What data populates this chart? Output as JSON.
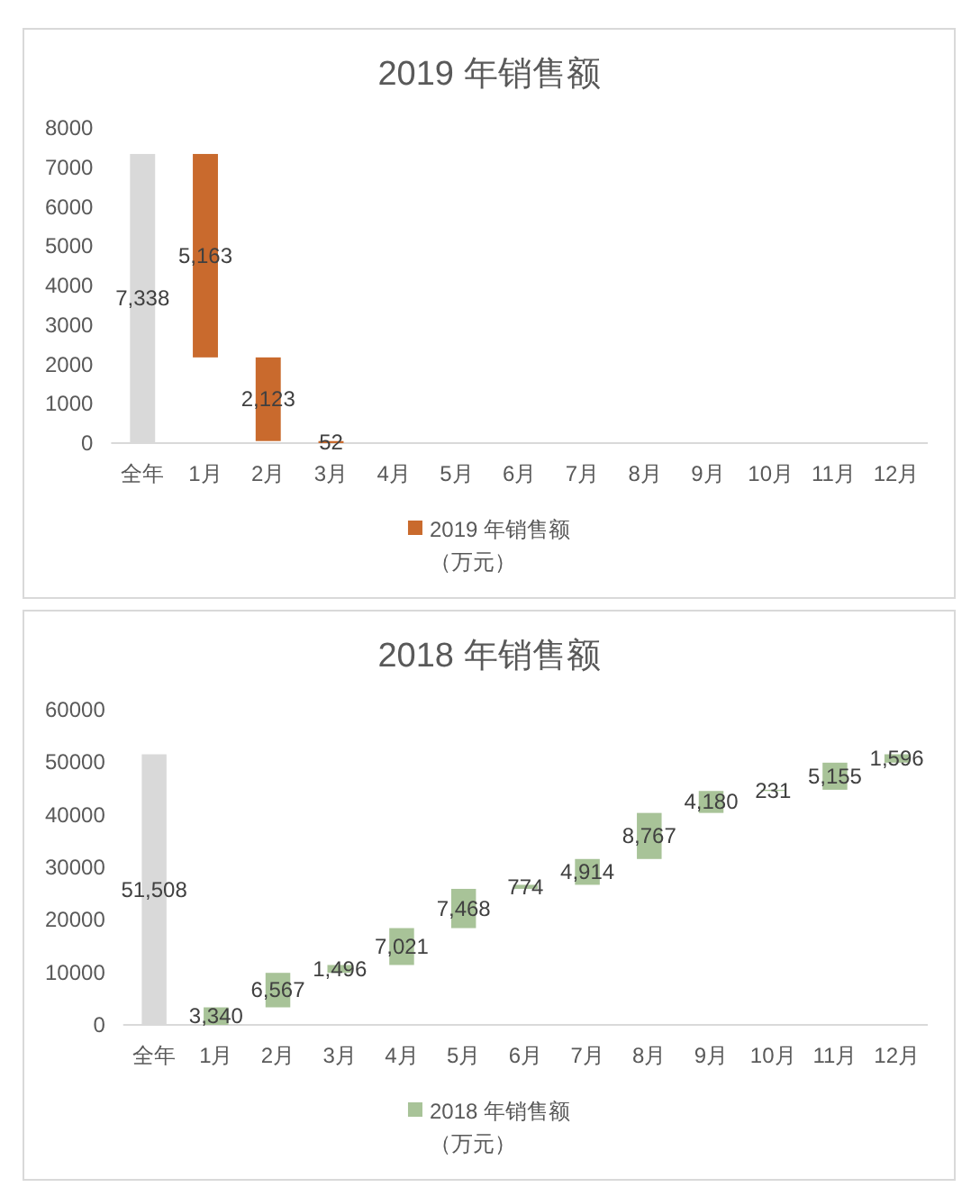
{
  "chart_data": [
    {
      "type": "bar",
      "title": "2019 年销售额",
      "categories": [
        "全年",
        "1月",
        "2月",
        "3月",
        "4月",
        "5月",
        "6月",
        "7月",
        "8月",
        "9月",
        "10月",
        "11月",
        "12月"
      ],
      "series": [
        {
          "color": "#d9d9d9",
          "values": [
            7338,
            null,
            null,
            null,
            null,
            null,
            null,
            null,
            null,
            null,
            null,
            null,
            null
          ],
          "value_labels": [
            "7,338",
            null,
            null,
            null,
            null,
            null,
            null,
            null,
            null,
            null,
            null,
            null,
            null
          ]
        },
        {
          "name": "2019 年销售额（万元）",
          "color": "#c96a2d",
          "values": [
            null,
            5163,
            2123,
            52,
            null,
            null,
            null,
            null,
            null,
            null,
            null,
            null,
            null
          ],
          "base": [
            null,
            2175,
            52,
            0,
            null,
            null,
            null,
            null,
            null,
            null,
            null,
            null,
            null
          ],
          "value_labels": [
            null,
            "5,163",
            "2,123",
            "52",
            null,
            null,
            null,
            null,
            null,
            null,
            null,
            null,
            null
          ]
        }
      ],
      "ylim": [
        0,
        8000
      ],
      "yticks": [
        0,
        1000,
        2000,
        3000,
        4000,
        5000,
        6000,
        7000,
        8000
      ],
      "legend": "bottom"
    },
    {
      "type": "bar",
      "title": "2018 年销售额",
      "categories": [
        "全年",
        "1月",
        "2月",
        "3月",
        "4月",
        "5月",
        "6月",
        "7月",
        "8月",
        "9月",
        "10月",
        "11月",
        "12月"
      ],
      "series": [
        {
          "color": "#d9d9d9",
          "values": [
            51508,
            null,
            null,
            null,
            null,
            null,
            null,
            null,
            null,
            null,
            null,
            null,
            null
          ],
          "value_labels": [
            "51,508",
            null,
            null,
            null,
            null,
            null,
            null,
            null,
            null,
            null,
            null,
            null,
            null
          ]
        },
        {
          "name": "2018 年销售额（万元）",
          "color": "#a8c398",
          "values": [
            null,
            3340,
            6567,
            1496,
            7021,
            7468,
            774,
            4914,
            8767,
            4180,
            231,
            5155,
            1596
          ],
          "base": [
            null,
            0,
            3340,
            9907,
            11403,
            18424,
            25892,
            26666,
            31580,
            40347,
            44527,
            44758,
            49913
          ],
          "value_labels": [
            null,
            "3,340",
            "6,567",
            "1,496",
            "7,021",
            "7,468",
            "774",
            "4,914",
            "8,767",
            "4,180",
            "231",
            "5,155",
            "1,596"
          ]
        }
      ],
      "ylim": [
        0,
        60000
      ],
      "yticks": [
        0,
        10000,
        20000,
        30000,
        40000,
        50000,
        60000
      ],
      "legend": "bottom"
    }
  ]
}
